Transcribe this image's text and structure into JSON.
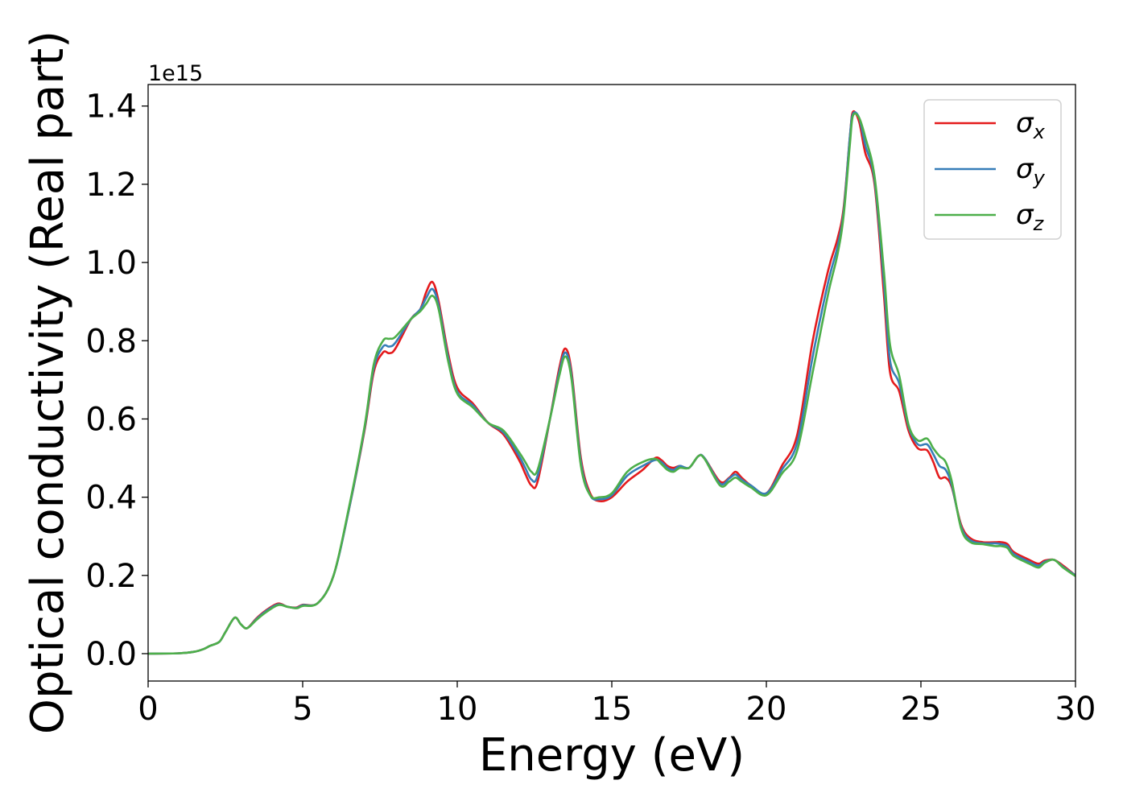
{
  "chart_data": {
    "type": "line",
    "title": "",
    "xlabel": "Energy (eV)",
    "ylabel": "Optical conductivity (Real part)",
    "y_offset_text": "1e15",
    "xlim": [
      0,
      30
    ],
    "ylim": [
      -0.07,
      1.455
    ],
    "x_ticks": [
      0,
      5,
      10,
      15,
      20,
      25,
      30
    ],
    "x_tick_labels": [
      "0",
      "5",
      "10",
      "15",
      "20",
      "25",
      "30"
    ],
    "y_ticks": [
      0.0,
      0.2,
      0.4,
      0.6,
      0.8,
      1.0,
      1.2,
      1.4
    ],
    "y_tick_labels": [
      "0.0",
      "0.2",
      "0.4",
      "0.6",
      "0.8",
      "1.0",
      "1.2",
      "1.4"
    ],
    "grid": false,
    "legend_position": "top-right",
    "series": [
      {
        "name": "σx",
        "symbol": "σ",
        "subscript": "x",
        "color": "#e41a1c",
        "x": [
          0,
          1,
          1.5,
          1.8,
          2,
          2.3,
          2.5,
          2.8,
          3,
          3.2,
          3.5,
          3.8,
          4.2,
          4.5,
          4.8,
          5,
          5.5,
          6,
          6.5,
          7,
          7.3,
          7.6,
          7.8,
          8,
          8.5,
          8.8,
          9,
          9.2,
          9.4,
          9.7,
          10,
          10.5,
          11,
          11.5,
          12,
          12.2,
          12.4,
          12.6,
          13,
          13.3,
          13.5,
          13.7,
          14,
          14.3,
          14.6,
          15,
          15.5,
          16,
          16.4,
          16.6,
          16.8,
          17,
          17.2,
          17.5,
          17.8,
          18,
          18.5,
          18.8,
          19,
          19.2,
          19.5,
          20,
          20.5,
          21,
          21.5,
          22,
          22.3,
          22.5,
          22.7,
          22.8,
          23,
          23.2,
          23.5,
          23.8,
          24,
          24.3,
          24.6,
          24.9,
          25.2,
          25.4,
          25.6,
          25.8,
          26,
          26.3,
          26.6,
          27,
          27.4,
          27.6,
          27.8,
          28,
          28.5,
          28.8,
          29,
          29.3,
          29.6,
          30
        ],
        "y": [
          0,
          0.001,
          0.005,
          0.012,
          0.02,
          0.03,
          0.055,
          0.092,
          0.075,
          0.065,
          0.09,
          0.11,
          0.128,
          0.12,
          0.118,
          0.125,
          0.13,
          0.2,
          0.37,
          0.57,
          0.72,
          0.77,
          0.768,
          0.78,
          0.855,
          0.88,
          0.925,
          0.95,
          0.9,
          0.77,
          0.68,
          0.64,
          0.59,
          0.56,
          0.495,
          0.46,
          0.43,
          0.44,
          0.6,
          0.73,
          0.78,
          0.72,
          0.5,
          0.41,
          0.39,
          0.4,
          0.44,
          0.47,
          0.5,
          0.495,
          0.48,
          0.475,
          0.48,
          0.475,
          0.505,
          0.5,
          0.44,
          0.45,
          0.465,
          0.45,
          0.43,
          0.41,
          0.48,
          0.56,
          0.8,
          0.98,
          1.06,
          1.14,
          1.32,
          1.385,
          1.36,
          1.28,
          1.2,
          0.92,
          0.72,
          0.67,
          0.57,
          0.525,
          0.52,
          0.49,
          0.45,
          0.45,
          0.425,
          0.33,
          0.295,
          0.285,
          0.285,
          0.285,
          0.28,
          0.26,
          0.24,
          0.23,
          0.238,
          0.24,
          0.225,
          0.2
        ]
      },
      {
        "name": "σy",
        "symbol": "σ",
        "subscript": "y",
        "color": "#377eb8",
        "x": [
          0,
          1,
          1.5,
          1.8,
          2,
          2.3,
          2.5,
          2.8,
          3,
          3.2,
          3.5,
          3.8,
          4.2,
          4.5,
          4.8,
          5,
          5.5,
          6,
          6.5,
          7,
          7.3,
          7.6,
          7.8,
          8,
          8.5,
          8.8,
          9,
          9.2,
          9.4,
          9.7,
          10,
          10.5,
          11,
          11.5,
          12,
          12.2,
          12.4,
          12.6,
          13,
          13.3,
          13.5,
          13.7,
          14,
          14.3,
          14.6,
          15,
          15.5,
          16,
          16.4,
          16.6,
          16.8,
          17,
          17.2,
          17.5,
          17.8,
          18,
          18.5,
          18.8,
          19,
          19.2,
          19.5,
          20,
          20.5,
          21,
          21.5,
          22,
          22.3,
          22.5,
          22.7,
          22.8,
          23,
          23.2,
          23.5,
          23.8,
          24,
          24.3,
          24.6,
          24.9,
          25.2,
          25.4,
          25.6,
          25.8,
          26,
          26.3,
          26.6,
          27,
          27.4,
          27.6,
          27.8,
          28,
          28.5,
          28.8,
          29,
          29.3,
          29.6,
          30
        ],
        "y": [
          0,
          0.001,
          0.005,
          0.012,
          0.02,
          0.03,
          0.055,
          0.092,
          0.075,
          0.065,
          0.088,
          0.108,
          0.126,
          0.12,
          0.117,
          0.124,
          0.13,
          0.2,
          0.37,
          0.575,
          0.73,
          0.785,
          0.785,
          0.795,
          0.855,
          0.88,
          0.91,
          0.932,
          0.89,
          0.76,
          0.67,
          0.635,
          0.59,
          0.565,
          0.505,
          0.475,
          0.445,
          0.455,
          0.6,
          0.72,
          0.77,
          0.71,
          0.49,
          0.405,
          0.395,
          0.405,
          0.455,
          0.48,
          0.495,
          0.49,
          0.475,
          0.47,
          0.48,
          0.475,
          0.505,
          0.5,
          0.435,
          0.448,
          0.458,
          0.445,
          0.43,
          0.41,
          0.47,
          0.54,
          0.76,
          0.95,
          1.04,
          1.13,
          1.32,
          1.38,
          1.37,
          1.3,
          1.21,
          0.95,
          0.75,
          0.69,
          0.58,
          0.535,
          0.535,
          0.51,
          0.48,
          0.47,
          0.43,
          0.325,
          0.29,
          0.282,
          0.282,
          0.28,
          0.275,
          0.255,
          0.235,
          0.225,
          0.235,
          0.24,
          0.222,
          0.2
        ]
      },
      {
        "name": "σz",
        "symbol": "σ",
        "subscript": "z",
        "color": "#4daf4a",
        "x": [
          0,
          1,
          1.5,
          1.8,
          2,
          2.3,
          2.5,
          2.8,
          3,
          3.2,
          3.5,
          3.8,
          4.2,
          4.5,
          4.8,
          5,
          5.5,
          6,
          6.5,
          7,
          7.3,
          7.6,
          7.8,
          8,
          8.5,
          8.8,
          9,
          9.2,
          9.4,
          9.7,
          10,
          10.5,
          11,
          11.5,
          12,
          12.2,
          12.4,
          12.6,
          13,
          13.3,
          13.5,
          13.7,
          14,
          14.3,
          14.6,
          15,
          15.5,
          16,
          16.4,
          16.6,
          16.8,
          17,
          17.2,
          17.5,
          17.8,
          18,
          18.5,
          18.8,
          19,
          19.2,
          19.5,
          20,
          20.5,
          21,
          21.5,
          22,
          22.3,
          22.5,
          22.7,
          22.8,
          23,
          23.2,
          23.5,
          23.8,
          24,
          24.3,
          24.6,
          24.9,
          25.2,
          25.4,
          25.6,
          25.8,
          26,
          26.3,
          26.6,
          27,
          27.4,
          27.6,
          27.8,
          28,
          28.5,
          28.8,
          29,
          29.3,
          29.6,
          30
        ],
        "y": [
          0,
          0.001,
          0.005,
          0.012,
          0.02,
          0.03,
          0.055,
          0.092,
          0.075,
          0.065,
          0.086,
          0.105,
          0.124,
          0.12,
          0.116,
          0.122,
          0.13,
          0.2,
          0.375,
          0.58,
          0.74,
          0.8,
          0.805,
          0.81,
          0.855,
          0.875,
          0.895,
          0.915,
          0.88,
          0.75,
          0.665,
          0.63,
          0.59,
          0.57,
          0.515,
          0.49,
          0.465,
          0.47,
          0.6,
          0.71,
          0.76,
          0.7,
          0.48,
          0.405,
          0.4,
          0.41,
          0.465,
          0.49,
          0.498,
          0.485,
          0.47,
          0.465,
          0.475,
          0.475,
          0.505,
          0.498,
          0.43,
          0.44,
          0.45,
          0.44,
          0.425,
          0.405,
          0.46,
          0.52,
          0.72,
          0.92,
          1.02,
          1.12,
          1.3,
          1.375,
          1.37,
          1.32,
          1.22,
          0.98,
          0.79,
          0.71,
          0.585,
          0.545,
          0.55,
          0.525,
          0.505,
          0.49,
          0.44,
          0.32,
          0.285,
          0.28,
          0.275,
          0.275,
          0.27,
          0.25,
          0.23,
          0.22,
          0.232,
          0.24,
          0.22,
          0.198
        ]
      }
    ]
  }
}
